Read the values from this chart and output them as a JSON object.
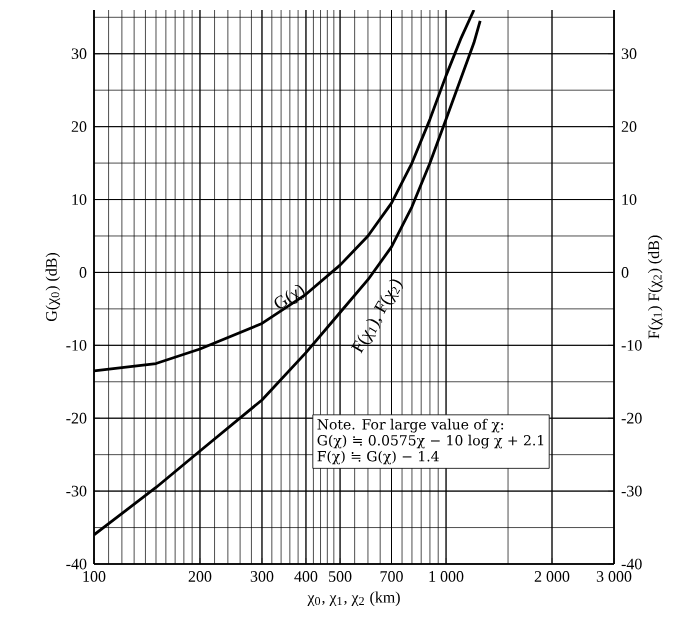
{
  "chart_data": {
    "type": "line",
    "xlabel": "χ$_{0}$, χ$_{1}$, χ$_{2}$ (km)",
    "ylabel": "G(χ$_{0}$) (dB)",
    "y2label": "F(χ$_{1}$)  F(χ$_{2}$) (dB)",
    "log": "x",
    "grid": true,
    "legend": false,
    "marker": "none",
    "line_style": "solid",
    "xlim": [
      100,
      3000
    ],
    "ylim": [
      -40,
      36
    ],
    "y2lim": [
      -40,
      36
    ],
    "xticks": [
      100,
      200,
      300,
      400,
      500,
      700,
      {
        "value": 1000,
        "label": "1 000"
      },
      {
        "value": 2000,
        "label": "2 000"
      },
      {
        "value": 3000,
        "label": "3 000"
      }
    ],
    "yticks": [
      -40,
      -30,
      -20,
      -10,
      0,
      10,
      20,
      30
    ],
    "y2ticks": [
      -40,
      -30,
      -20,
      -10,
      0,
      10,
      20,
      30
    ],
    "series": [
      {
        "name": "G(χ)",
        "color": "#000000",
        "x": [
          100,
          150,
          200,
          300,
          400,
          500,
          600,
          700,
          800,
          900,
          1000,
          1100,
          1200
        ],
        "values": [
          -13.5,
          -12.5,
          -10.5,
          -7,
          -3,
          1,
          5,
          9.5,
          15,
          21,
          27,
          32,
          36
        ]
      },
      {
        "name": "F(χ$_{1}$), F(χ$_{2}$)",
        "color": "#000000",
        "x": [
          100,
          150,
          200,
          300,
          400,
          500,
          600,
          700,
          800,
          900,
          1000,
          1100,
          1200,
          1250
        ],
        "values": [
          -36,
          -29.5,
          -24.5,
          -17.5,
          -11,
          -5.5,
          -1,
          3.5,
          9,
          15,
          21,
          26.5,
          31.5,
          34.5
        ]
      }
    ],
    "annotations": [
      "Note. For large value of χ:",
      "G(χ) ≒ 0.0575χ − 10 log χ + 2.1",
      "F(χ) ≒ G(χ) − 1.4"
    ]
  }
}
